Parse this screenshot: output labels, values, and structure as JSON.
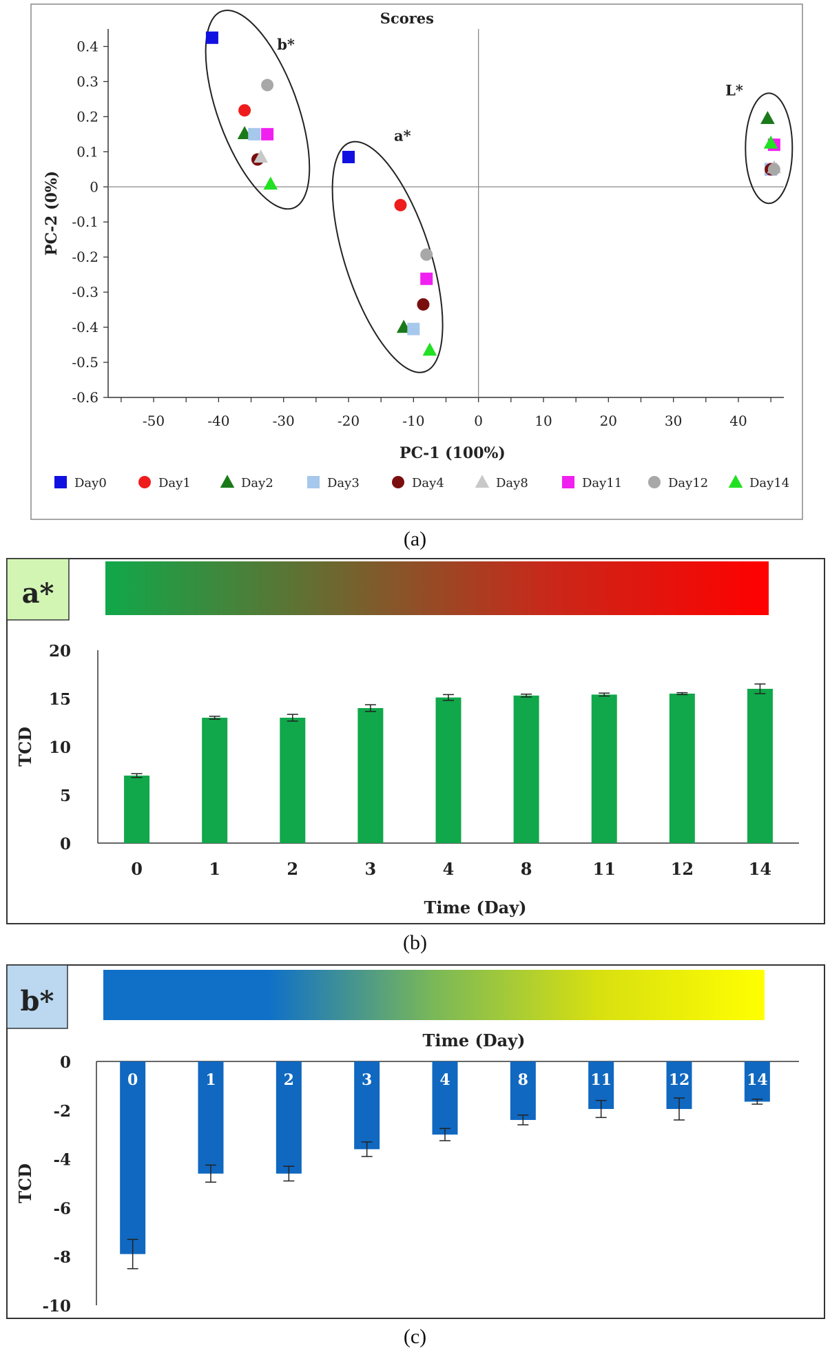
{
  "captions": {
    "a": "(a)",
    "b": "(b)",
    "c": "(c)"
  },
  "colors": {
    "day0": "#1010e0",
    "day1": "#ee1c1c",
    "day2": "#1a7a1a",
    "day3": "#a6c8ec",
    "day4": "#7a0e0e",
    "day8": "#c8c8c8",
    "day11": "#f020f0",
    "day12": "#a8a8a8",
    "day14": "#22e022",
    "bar_a": "#10a84a",
    "bar_b": "#1068c0",
    "grad_a": [
      "#10a84a",
      "#6a6a30",
      "#c8281a",
      "#ff0000"
    ],
    "grad_b": [
      "#1070c8",
      "#1070c8",
      "#7ab858",
      "#d8e010",
      "#ffff00"
    ],
    "badge_a": "#d2f5b4",
    "badge_b": "#bcd8f0"
  },
  "chart_data": [
    {
      "type": "scatter",
      "title": "Scores",
      "xlabel": "PC-1 (100%)",
      "ylabel": "PC-2 (0%)",
      "xlim": [
        -57,
        47
      ],
      "ylim": [
        -0.6,
        0.45
      ],
      "xticks": [
        -50,
        -40,
        -30,
        -20,
        -10,
        0,
        10,
        20,
        30,
        40
      ],
      "yticks": [
        0.4,
        0.3,
        0.2,
        0.1,
        0,
        -0.1,
        -0.2,
        -0.3,
        -0.4,
        -0.5,
        -0.6
      ],
      "groups": [
        {
          "label": "b*",
          "label_x": -31,
          "label_y": 0.43,
          "cx": -34,
          "cy": 0.22,
          "rx": 0.24,
          "ry": 0.28,
          "angle": -20
        },
        {
          "label": "a*",
          "label_x": -13,
          "label_y": 0.17,
          "cx": -14,
          "cy": -0.2,
          "rx": 0.24,
          "ry": 0.3,
          "angle": -18
        },
        {
          "label": "L*",
          "label_x": 38,
          "label_y": 0.3,
          "cx": 44.7,
          "cy": 0.11,
          "rx": 0.55,
          "ry": 0.32,
          "angle": 0
        }
      ],
      "series": [
        {
          "name": "Day0",
          "marker": "square",
          "color_key": "day0",
          "points": [
            [
              -41,
              0.425
            ],
            [
              -20,
              0.085
            ],
            [
              45,
              0.05
            ]
          ]
        },
        {
          "name": "Day1",
          "marker": "circle",
          "color_key": "day1",
          "points": [
            [
              -36,
              0.218
            ],
            [
              -12,
              -0.052
            ],
            [
              45,
              0.05
            ]
          ]
        },
        {
          "name": "Day2",
          "marker": "triangle",
          "color_key": "day2",
          "points": [
            [
              -36,
              0.152
            ],
            [
              -11.5,
              -0.4
            ],
            [
              44.5,
              0.195
            ]
          ]
        },
        {
          "name": "Day3",
          "marker": "square",
          "color_key": "day3",
          "points": [
            [
              -34.5,
              0.15
            ],
            [
              -10,
              -0.405
            ],
            [
              45,
              0.05
            ]
          ]
        },
        {
          "name": "Day4",
          "marker": "circle",
          "color_key": "day4",
          "points": [
            [
              -34,
              0.078
            ],
            [
              -8.5,
              -0.335
            ],
            [
              45,
              0.05
            ]
          ]
        },
        {
          "name": "Day8",
          "marker": "triangle",
          "color_key": "day8",
          "points": [
            [
              -33.5,
              0.085
            ],
            [
              45.5,
              0.055
            ]
          ]
        },
        {
          "name": "Day11",
          "marker": "square",
          "color_key": "day11",
          "points": [
            [
              -32.5,
              0.15
            ],
            [
              -8,
              -0.262
            ],
            [
              45.5,
              0.12
            ]
          ]
        },
        {
          "name": "Day12",
          "marker": "circle",
          "color_key": "day12",
          "points": [
            [
              -32.5,
              0.29
            ],
            [
              -8,
              -0.193
            ],
            [
              45.5,
              0.05
            ]
          ]
        },
        {
          "name": "Day14",
          "marker": "triangle",
          "color_key": "day14",
          "points": [
            [
              -32,
              0.008
            ],
            [
              -7.5,
              -0.465
            ],
            [
              45,
              0.125
            ]
          ]
        }
      ]
    },
    {
      "type": "bar",
      "badge": "a*",
      "xlabel": "Time (Day)",
      "ylabel": "TCD",
      "ylim": [
        0,
        20
      ],
      "yticks": [
        20,
        15,
        10,
        5,
        0
      ],
      "categories": [
        "0",
        "1",
        "2",
        "3",
        "4",
        "8",
        "11",
        "12",
        "14"
      ],
      "values": [
        7.0,
        13.0,
        13.0,
        14.0,
        15.1,
        15.3,
        15.4,
        15.5,
        16.0
      ],
      "errors": [
        0.2,
        0.15,
        0.35,
        0.35,
        0.3,
        0.15,
        0.15,
        0.1,
        0.5
      ]
    },
    {
      "type": "bar",
      "badge": "b*",
      "xlabel": "Time (Day)",
      "ylabel": "TCD",
      "ylim": [
        -10,
        0
      ],
      "yticks": [
        0,
        -2,
        -4,
        -6,
        -8,
        -10
      ],
      "categories": [
        "0",
        "1",
        "2",
        "3",
        "4",
        "8",
        "11",
        "12",
        "14"
      ],
      "values": [
        -7.9,
        -4.6,
        -4.6,
        -3.6,
        -3.0,
        -2.4,
        -1.95,
        -1.95,
        -1.65
      ],
      "errors": [
        0.6,
        0.35,
        0.3,
        0.3,
        0.25,
        0.2,
        0.35,
        0.45,
        0.1
      ]
    }
  ]
}
